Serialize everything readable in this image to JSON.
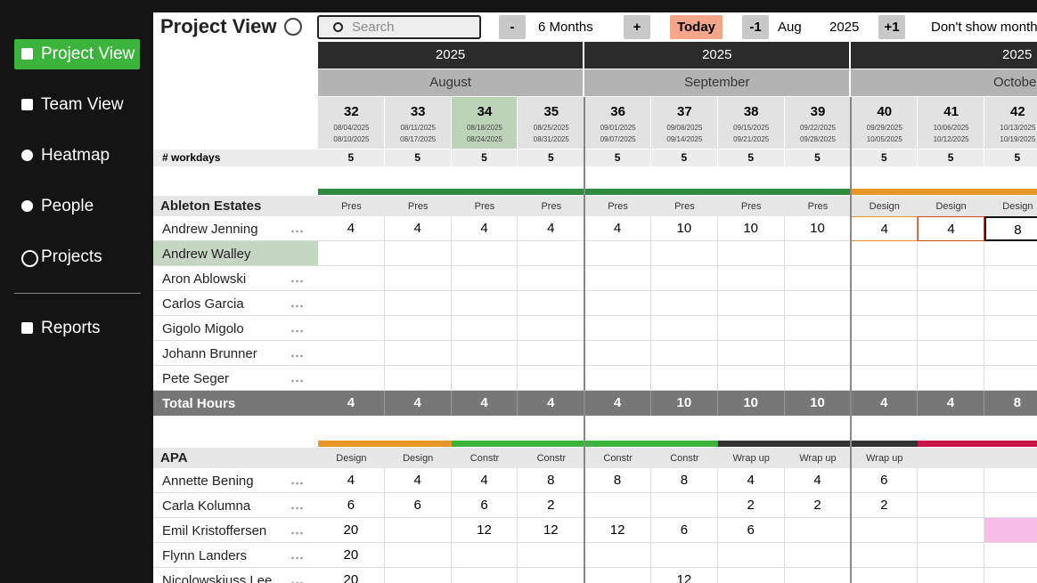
{
  "sidebar": {
    "items": [
      "Project View",
      "Team View",
      "Heatmap",
      "People",
      "Projects",
      "Reports"
    ]
  },
  "toolbar": {
    "title": "Project View",
    "search_placeholder": "Search",
    "minus": "-",
    "range": "6 Months",
    "plus": "+",
    "today": "Today",
    "prev": "-1",
    "month": "Aug",
    "year": "2025",
    "next": "+1",
    "option": "Don't show month"
  },
  "timeline": {
    "workdays_label": "# workdays",
    "months": [
      {
        "year": "2025",
        "name": "August",
        "weeks": [
          {
            "number": 32,
            "start": "08/04/2025",
            "end": "08/10/2025",
            "workdays": 5
          },
          {
            "number": 33,
            "start": "08/11/2025",
            "end": "08/17/2025",
            "workdays": 5
          },
          {
            "number": 34,
            "start": "08/18/2025",
            "end": "08/24/2025",
            "workdays": 5
          },
          {
            "number": 35,
            "start": "08/25/2025",
            "end": "08/31/2025",
            "workdays": 5
          }
        ]
      },
      {
        "year": "2025",
        "name": "September",
        "weeks": [
          {
            "number": 36,
            "start": "09/01/2025",
            "end": "09/07/2025",
            "workdays": 5
          },
          {
            "number": 37,
            "start": "09/08/2025",
            "end": "09/14/2025",
            "workdays": 5
          },
          {
            "number": 38,
            "start": "09/15/2025",
            "end": "09/21/2025",
            "workdays": 5
          },
          {
            "number": 39,
            "start": "09/22/2025",
            "end": "09/28/2025",
            "workdays": 5
          }
        ]
      },
      {
        "year": "2025",
        "name": "October",
        "weeks": [
          {
            "number": 40,
            "start": "09/29/2025",
            "end": "10/05/2025",
            "workdays": 5
          },
          {
            "number": 41,
            "start": "10/06/2025",
            "end": "10/12/2025",
            "workdays": 5
          },
          {
            "number": 42,
            "start": "10/13/2025",
            "end": "10/19/2025",
            "workdays": 5
          }
        ]
      }
    ]
  },
  "projects": [
    {
      "name": "Ableton Estates",
      "colors": [
        "#2e8b40",
        "#2e8b40",
        "#2e8b40",
        "#2e8b40",
        "#2e8b40",
        "#2e8b40",
        "#2e8b40",
        "#2e8b40",
        "#e8962a",
        "#e8962a",
        "#e8962a"
      ],
      "phases": [
        "Pres",
        "Pres",
        "Pres",
        "Pres",
        "Pres",
        "Pres",
        "Pres",
        "Pres",
        "Design",
        "Design",
        "Design"
      ],
      "people": [
        {
          "name": "Andrew Jenning",
          "hours": [
            4,
            4,
            4,
            4,
            4,
            10,
            10,
            10,
            4,
            4,
            8
          ]
        },
        {
          "name": "Andrew Walley",
          "hours": [
            null,
            null,
            null,
            null,
            null,
            null,
            null,
            null,
            null,
            null,
            null
          ]
        },
        {
          "name": "Aron Ablowski",
          "hours": [
            null,
            null,
            null,
            null,
            null,
            null,
            null,
            null,
            null,
            null,
            null
          ]
        },
        {
          "name": "Carlos Garcia",
          "hours": [
            null,
            null,
            null,
            null,
            null,
            null,
            null,
            null,
            null,
            null,
            null
          ]
        },
        {
          "name": "Gigolo Migolo",
          "hours": [
            null,
            null,
            null,
            null,
            null,
            null,
            null,
            null,
            null,
            null,
            null
          ]
        },
        {
          "name": "Johann Brunner",
          "hours": [
            null,
            null,
            null,
            null,
            null,
            null,
            null,
            null,
            null,
            null,
            null
          ]
        },
        {
          "name": "Pete Seger",
          "hours": [
            null,
            null,
            null,
            null,
            null,
            null,
            null,
            null,
            null,
            null,
            null
          ]
        }
      ],
      "total_label": "Total Hours",
      "totals": [
        4,
        4,
        4,
        4,
        4,
        10,
        10,
        10,
        4,
        4,
        8
      ]
    },
    {
      "name": "APA",
      "colors": [
        "#e8962a",
        "#e8962a",
        "#3cb43c",
        "#3cb43c",
        "#3cb43c",
        "#3cb43c",
        "#333333",
        "#333333",
        "#333333",
        "#c8144a",
        "#c8144a"
      ],
      "phases": [
        "Design",
        "Design",
        "Constr",
        "Constr",
        "Constr",
        "Constr",
        "Wrap up",
        "Wrap up",
        "Wrap up",
        null,
        null
      ],
      "people": [
        {
          "name": "Annette Bening",
          "hours": [
            4,
            4,
            4,
            8,
            8,
            8,
            4,
            4,
            6,
            null,
            null
          ]
        },
        {
          "name": "Carla Kolumna",
          "hours": [
            6,
            6,
            6,
            2,
            null,
            null,
            2,
            2,
            2,
            null,
            null
          ]
        },
        {
          "name": "Emil Kristoffersen",
          "hours": [
            20,
            null,
            12,
            12,
            12,
            6,
            6,
            null,
            null,
            null,
            null
          ]
        },
        {
          "name": "Flynn Landers",
          "hours": [
            20,
            null,
            null,
            null,
            null,
            null,
            null,
            null,
            null,
            null,
            null
          ]
        },
        {
          "name": "Nicolowskiuss Lee",
          "hours": [
            20,
            null,
            null,
            null,
            null,
            12,
            null,
            null,
            null,
            null,
            null
          ]
        }
      ]
    }
  ]
}
